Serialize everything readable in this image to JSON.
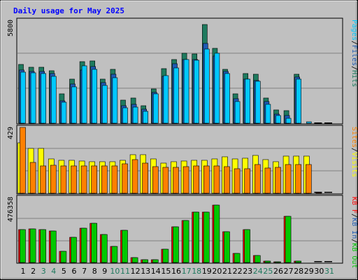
{
  "chart_data": [
    {
      "type": "bar",
      "panel": "top",
      "title": "Daily usage for May 2025",
      "categories": [
        "1",
        "2",
        "3",
        "4",
        "5",
        "6",
        "7",
        "8",
        "9",
        "10",
        "11",
        "12",
        "13",
        "14",
        "15",
        "16",
        "17",
        "18",
        "19",
        "20",
        "21",
        "22",
        "23",
        "24",
        "25",
        "26",
        "27",
        "28",
        "29",
        "30",
        "31"
      ],
      "ymax_label": "5800",
      "ylim": [
        0,
        5800
      ],
      "series": [
        {
          "name": "Hits",
          "color": "#1e7a5e",
          "values": [
            3300,
            3150,
            3150,
            2950,
            1640,
            2470,
            3480,
            3520,
            2470,
            3020,
            1320,
            1430,
            1000,
            1950,
            3070,
            3580,
            3930,
            3920,
            5550,
            4240,
            3050,
            1640,
            2810,
            2750,
            1430,
            760,
            700,
            2780,
            0,
            0,
            0
          ]
        },
        {
          "name": "Files",
          "color": "#1e5ab4",
          "values": [
            3000,
            2900,
            2900,
            2800,
            1250,
            2200,
            3000,
            3200,
            2280,
            2750,
            1000,
            1050,
            780,
            1750,
            2650,
            3340,
            3600,
            3600,
            4480,
            3800,
            2900,
            1400,
            2500,
            2400,
            1240,
            520,
            420,
            2600,
            0,
            0,
            0
          ]
        },
        {
          "name": "Pages",
          "color": "#00c8ff",
          "values": [
            2880,
            2840,
            2800,
            2650,
            1180,
            2060,
            3230,
            3050,
            2150,
            2580,
            880,
            910,
            680,
            1650,
            2700,
            3130,
            3590,
            3570,
            4200,
            3930,
            2800,
            1240,
            2500,
            2380,
            1060,
            420,
            280,
            2500,
            60,
            0,
            0
          ]
        }
      ]
    },
    {
      "type": "bar",
      "panel": "middle",
      "ymax_label": "429",
      "ylim": [
        0,
        429
      ],
      "series": [
        {
          "name": "Visits",
          "color": "#ffff00",
          "values": [
            328,
            293,
            293,
            224,
            213,
            213,
            212,
            207,
            207,
            207,
            215,
            250,
            250,
            222,
            198,
            207,
            210,
            216,
            216,
            222,
            238,
            225,
            228,
            245,
            220,
            207,
            242,
            242,
            242,
            0,
            0
          ]
        },
        {
          "name": "Sites",
          "color": "#ff8000",
          "values": [
            429,
            202,
            180,
            182,
            178,
            178,
            178,
            180,
            180,
            180,
            190,
            221,
            194,
            175,
            170,
            168,
            175,
            177,
            177,
            180,
            175,
            162,
            162,
            186,
            165,
            170,
            186,
            186,
            186,
            5,
            0
          ]
        }
      ]
    },
    {
      "type": "bar",
      "panel": "bottom",
      "ymax_label": "476358",
      "ylim": [
        0,
        476358
      ],
      "series": [
        {
          "name": "KB F",
          "color": "#ff0000",
          "values": [
            240000,
            246000,
            240000,
            232000,
            80000,
            182000,
            252000,
            288000,
            204000,
            118000,
            236000,
            36000,
            20000,
            20000,
            98000,
            260000,
            306000,
            370000,
            370000,
            420000,
            226000,
            66000,
            240000,
            50000,
            10000,
            5000,
            340000,
            8000,
            0,
            0,
            0
          ]
        },
        {
          "name": "KB In",
          "color": "#1e5ab4",
          "values": []
        },
        {
          "name": "KB Out",
          "color": "#00c800",
          "values": [
            240000,
            246000,
            240000,
            232000,
            80000,
            182000,
            252000,
            288000,
            204000,
            118000,
            236000,
            36000,
            20000,
            20000,
            98000,
            260000,
            306000,
            370000,
            370000,
            420000,
            226000,
            66000,
            240000,
            50000,
            10000,
            5000,
            340000,
            8000,
            0,
            0,
            0
          ]
        }
      ]
    }
  ],
  "weekend_days": [
    3,
    4,
    10,
    11,
    17,
    18,
    24,
    25,
    31
  ]
}
